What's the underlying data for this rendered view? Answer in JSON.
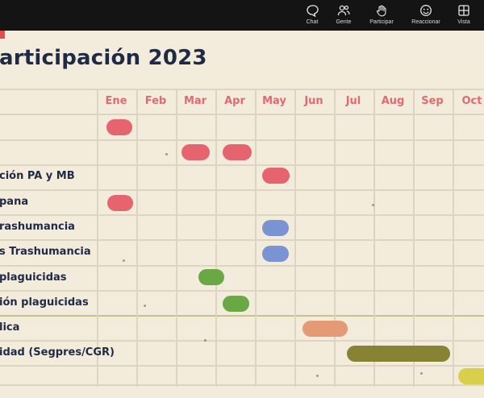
{
  "toolbar": {
    "items": [
      {
        "label": "Chat",
        "icon": "chat-icon"
      },
      {
        "label": "Gente",
        "icon": "people-icon"
      },
      {
        "label": "Participar",
        "icon": "raise-hand-icon"
      },
      {
        "label": "Reaccionar",
        "icon": "smiley-icon"
      },
      {
        "label": "Vista",
        "icon": "grid-view-icon"
      }
    ]
  },
  "slide": {
    "title": "articipación 2023",
    "months": [
      "Ene",
      "Feb",
      "Mar",
      "Apr",
      "May",
      "Jun",
      "Jul",
      "Aug",
      "Sep",
      "Oct"
    ],
    "rows": [
      "",
      "",
      "ción PA y MB",
      "pana",
      "rashumancia",
      "s Trashumancia",
      " plaguicidas",
      "ión plaguicidas",
      "lica",
      "idad (Segpres/CGR)",
      ""
    ],
    "colors": {
      "red": "#e6646d",
      "blue": "#7a93d3",
      "green": "#6aa846",
      "orange": "#e49a74",
      "olive": "#878234",
      "yellow": "#d8cf4a"
    }
  }
}
